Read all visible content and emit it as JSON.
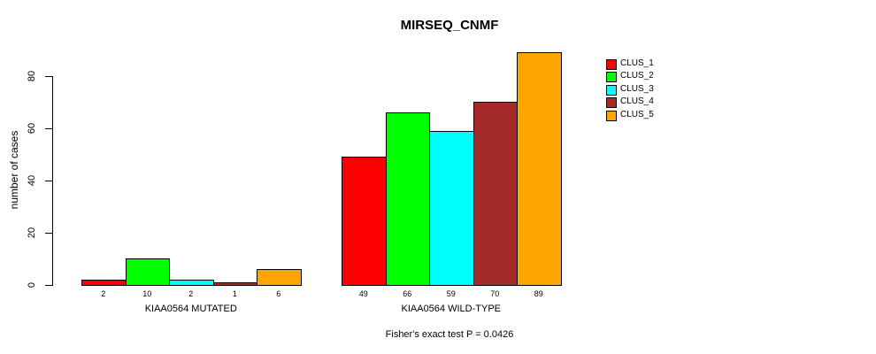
{
  "chart_data": {
    "type": "bar",
    "title": "MIRSEQ_CNMF",
    "ylabel": "number of cases",
    "xlabel": "",
    "ylim": [
      0,
      89
    ],
    "yticks": [
      0,
      20,
      40,
      60,
      80
    ],
    "grid": false,
    "legend_position": "right",
    "categories": [
      "KIAA0564 MUTATED",
      "KIAA0564 WILD-TYPE"
    ],
    "series": [
      {
        "name": "CLUS_1",
        "color": "#FF0000",
        "values": [
          2,
          49
        ]
      },
      {
        "name": "CLUS_2",
        "color": "#00FF00",
        "values": [
          10,
          66
        ]
      },
      {
        "name": "CLUS_3",
        "color": "#00FFFF",
        "values": [
          2,
          59
        ]
      },
      {
        "name": "CLUS_4",
        "color": "#A52A2A",
        "values": [
          1,
          70
        ]
      },
      {
        "name": "CLUS_5",
        "color": "#FFA500",
        "values": [
          6,
          89
        ]
      }
    ],
    "bar_value_labels": [
      [
        2,
        10,
        2,
        1,
        6
      ],
      [
        49,
        66,
        59,
        70,
        89
      ]
    ],
    "annotation": "Fisher's exact test P = 0.0426"
  }
}
